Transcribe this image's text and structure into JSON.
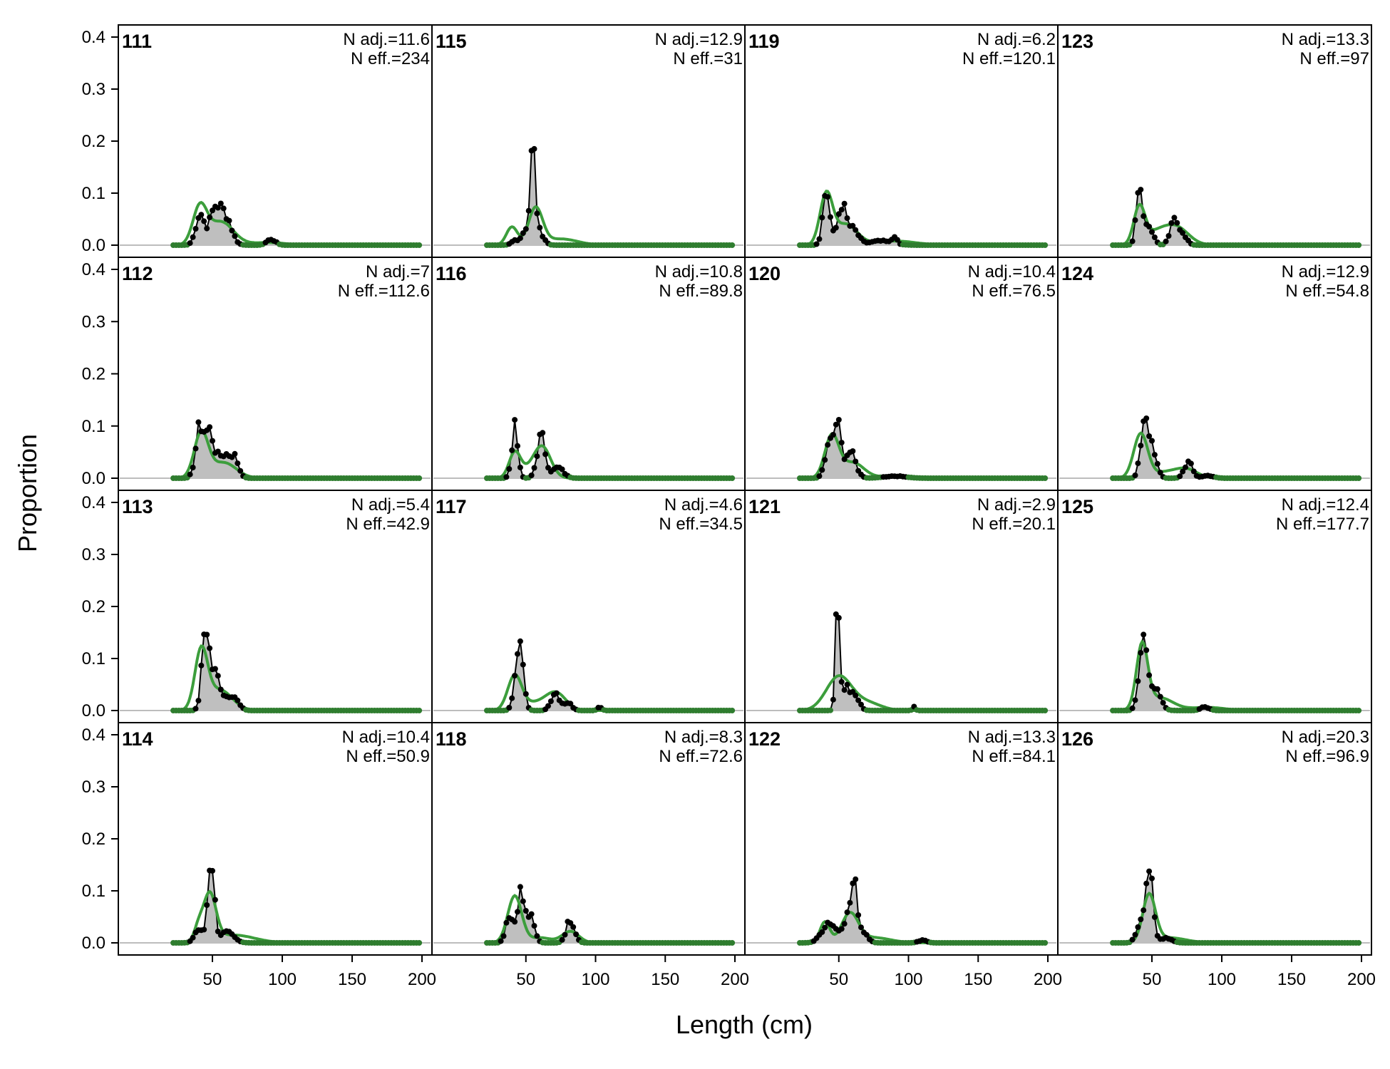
{
  "chart_data": {
    "type": "area",
    "xlabel": "Length (cm)",
    "ylabel": "Proportion",
    "xlim": [
      0,
      200
    ],
    "ylim": [
      0,
      0.4
    ],
    "x_ticks": [
      "50",
      "100",
      "150",
      "200"
    ],
    "y_ticks": [
      "0.0",
      "0.1",
      "0.2",
      "0.3",
      "0.4"
    ],
    "grid": false,
    "colors": {
      "observed_fill": "#bfbfbf",
      "observed_line": "#000000",
      "expected": "#3c9e3c",
      "zero_line": "#bdbdbd"
    },
    "panels": [
      {
        "title": "111",
        "n_adj": "N adj.=11.6",
        "n_eff": "N eff.=234",
        "peaks": [
          {
            "mu": 41,
            "sd": 3,
            "h": 0.06
          },
          {
            "mu": 52,
            "sd": 4,
            "h": 0.07
          },
          {
            "mu": 60,
            "sd": 4,
            "h": 0.05
          },
          {
            "mu": 92,
            "sd": 3,
            "h": 0.012
          }
        ],
        "fit": [
          {
            "mu": 41,
            "sd": 5,
            "h": 0.07
          },
          {
            "mu": 56,
            "sd": 9,
            "h": 0.045
          },
          {
            "mu": 90,
            "sd": 12,
            "h": 0.005
          }
        ]
      },
      {
        "title": "112",
        "n_adj": "N adj.=7",
        "n_eff": "N eff.=112.6",
        "peaks": [
          {
            "mu": 41,
            "sd": 3,
            "h": 0.095
          },
          {
            "mu": 48,
            "sd": 3,
            "h": 0.08
          },
          {
            "mu": 58,
            "sd": 5,
            "h": 0.045
          },
          {
            "mu": 66,
            "sd": 3,
            "h": 0.03
          }
        ],
        "fit": [
          {
            "mu": 42,
            "sd": 5,
            "h": 0.085
          },
          {
            "mu": 58,
            "sd": 9,
            "h": 0.03
          }
        ]
      },
      {
        "title": "113",
        "n_adj": "N adj.=5.4",
        "n_eff": "N eff.=42.9",
        "peaks": [
          {
            "mu": 45,
            "sd": 2.5,
            "h": 0.15
          },
          {
            "mu": 52,
            "sd": 4,
            "h": 0.07
          },
          {
            "mu": 64,
            "sd": 4,
            "h": 0.03
          }
        ],
        "fit": [
          {
            "mu": 42,
            "sd": 4.5,
            "h": 0.11
          },
          {
            "mu": 55,
            "sd": 9,
            "h": 0.04
          }
        ]
      },
      {
        "title": "114",
        "n_adj": "N adj.=10.4",
        "n_eff": "N eff.=50.9",
        "peaks": [
          {
            "mu": 49,
            "sd": 2.3,
            "h": 0.165
          },
          {
            "mu": 40,
            "sd": 3,
            "h": 0.025
          },
          {
            "mu": 60,
            "sd": 5,
            "h": 0.02
          }
        ],
        "fit": [
          {
            "mu": 48,
            "sd": 4.5,
            "h": 0.09
          },
          {
            "mu": 40,
            "sd": 3,
            "h": 0.025
          },
          {
            "mu": 65,
            "sd": 15,
            "h": 0.015
          }
        ]
      },
      {
        "title": "115",
        "n_adj": "N adj.=12.9",
        "n_eff": "N eff.=31",
        "peaks": [
          {
            "mu": 55,
            "sd": 1.8,
            "h": 0.185
          },
          {
            "mu": 50,
            "sd": 2.5,
            "h": 0.03
          },
          {
            "mu": 60,
            "sd": 3,
            "h": 0.025
          },
          {
            "mu": 43,
            "sd": 3,
            "h": 0.01
          }
        ],
        "fit": [
          {
            "mu": 57,
            "sd": 5,
            "h": 0.07
          },
          {
            "mu": 40,
            "sd": 4,
            "h": 0.035
          },
          {
            "mu": 75,
            "sd": 12,
            "h": 0.012
          }
        ]
      },
      {
        "title": "116",
        "n_adj": "N adj.=10.8",
        "n_eff": "N eff.=89.8",
        "peaks": [
          {
            "mu": 42,
            "sd": 2.2,
            "h": 0.095
          },
          {
            "mu": 61,
            "sd": 3,
            "h": 0.08
          },
          {
            "mu": 73,
            "sd": 4,
            "h": 0.02
          }
        ],
        "fit": [
          {
            "mu": 42,
            "sd": 4,
            "h": 0.045
          },
          {
            "mu": 62,
            "sd": 6,
            "h": 0.055
          },
          {
            "mu": 52,
            "sd": 8,
            "h": 0.015
          }
        ]
      },
      {
        "title": "117",
        "n_adj": "N adj.=4.6",
        "n_eff": "N eff.=34.5",
        "peaks": [
          {
            "mu": 45,
            "sd": 2.8,
            "h": 0.14
          },
          {
            "mu": 71,
            "sd": 3,
            "h": 0.035
          },
          {
            "mu": 80,
            "sd": 3,
            "h": 0.015
          },
          {
            "mu": 103,
            "sd": 1.5,
            "h": 0.008
          }
        ],
        "fit": [
          {
            "mu": 42,
            "sd": 5,
            "h": 0.065
          },
          {
            "mu": 72,
            "sd": 7,
            "h": 0.03
          },
          {
            "mu": 58,
            "sd": 10,
            "h": 0.015
          }
        ]
      },
      {
        "title": "118",
        "n_adj": "N adj.=8.3",
        "n_eff": "N eff.=72.6",
        "peaks": [
          {
            "mu": 46,
            "sd": 2.5,
            "h": 0.095
          },
          {
            "mu": 38,
            "sd": 2.5,
            "h": 0.055
          },
          {
            "mu": 53,
            "sd": 3,
            "h": 0.05
          },
          {
            "mu": 82,
            "sd": 3,
            "h": 0.045
          }
        ],
        "fit": [
          {
            "mu": 42,
            "sd": 5,
            "h": 0.09
          },
          {
            "mu": 82,
            "sd": 6,
            "h": 0.022
          },
          {
            "mu": 60,
            "sd": 8,
            "h": 0.01
          }
        ]
      },
      {
        "title": "119",
        "n_adj": "N adj.=6.2",
        "n_eff": "N eff.=120.1",
        "peaks": [
          {
            "mu": 41,
            "sd": 2.5,
            "h": 0.105
          },
          {
            "mu": 52,
            "sd": 3,
            "h": 0.075
          },
          {
            "mu": 60,
            "sd": 4,
            "h": 0.03
          },
          {
            "mu": 90,
            "sd": 1.5,
            "h": 0.015
          },
          {
            "mu": 80,
            "sd": 8,
            "h": 0.008
          }
        ],
        "fit": [
          {
            "mu": 41,
            "sd": 4.5,
            "h": 0.095
          },
          {
            "mu": 55,
            "sd": 8,
            "h": 0.04
          },
          {
            "mu": 90,
            "sd": 15,
            "h": 0.008
          }
        ]
      },
      {
        "title": "120",
        "n_adj": "N adj.=10.4",
        "n_eff": "N eff.=76.5",
        "peaks": [
          {
            "mu": 49,
            "sd": 2.5,
            "h": 0.095
          },
          {
            "mu": 43,
            "sd": 3,
            "h": 0.06
          },
          {
            "mu": 58,
            "sd": 4,
            "h": 0.05
          },
          {
            "mu": 90,
            "sd": 8,
            "h": 0.004
          }
        ],
        "fit": [
          {
            "mu": 45,
            "sd": 5,
            "h": 0.08
          },
          {
            "mu": 60,
            "sd": 8,
            "h": 0.03
          },
          {
            "mu": 90,
            "sd": 10,
            "h": 0.004
          }
        ]
      },
      {
        "title": "121",
        "n_adj": "N adj.=2.9",
        "n_eff": "N eff.=20.1",
        "peaks": [
          {
            "mu": 49,
            "sd": 1.4,
            "h": 0.245
          },
          {
            "mu": 55,
            "sd": 3,
            "h": 0.045
          },
          {
            "mu": 62,
            "sd": 3,
            "h": 0.025
          },
          {
            "mu": 104,
            "sd": 1,
            "h": 0.008
          }
        ],
        "fit": [
          {
            "mu": 50,
            "sd": 9,
            "h": 0.065
          },
          {
            "mu": 70,
            "sd": 10,
            "h": 0.015
          }
        ]
      },
      {
        "title": "122",
        "n_adj": "N adj.=13.3",
        "n_eff": "N eff.=84.1",
        "peaks": [
          {
            "mu": 61,
            "sd": 2.5,
            "h": 0.11
          },
          {
            "mu": 43,
            "sd": 5,
            "h": 0.04
          },
          {
            "mu": 55,
            "sd": 3,
            "h": 0.04
          },
          {
            "mu": 68,
            "sd": 3,
            "h": 0.02
          },
          {
            "mu": 110,
            "sd": 3,
            "h": 0.005
          }
        ],
        "fit": [
          {
            "mu": 40,
            "sd": 3.5,
            "h": 0.04
          },
          {
            "mu": 58,
            "sd": 6,
            "h": 0.055
          },
          {
            "mu": 75,
            "sd": 12,
            "h": 0.01
          }
        ]
      },
      {
        "title": "123",
        "n_adj": "N adj.=13.3",
        "n_eff": "N eff.=97",
        "peaks": [
          {
            "mu": 41,
            "sd": 2.2,
            "h": 0.12
          },
          {
            "mu": 48,
            "sd": 3,
            "h": 0.035
          },
          {
            "mu": 66,
            "sd": 3,
            "h": 0.045
          },
          {
            "mu": 72,
            "sd": 3,
            "h": 0.02
          }
        ],
        "fit": [
          {
            "mu": 41,
            "sd": 4,
            "h": 0.07
          },
          {
            "mu": 67,
            "sd": 9,
            "h": 0.035
          },
          {
            "mu": 52,
            "sd": 8,
            "h": 0.02
          }
        ]
      },
      {
        "title": "124",
        "n_adj": "N adj.=12.9",
        "n_eff": "N eff.=54.8",
        "peaks": [
          {
            "mu": 45,
            "sd": 2.8,
            "h": 0.12
          },
          {
            "mu": 51,
            "sd": 3,
            "h": 0.04
          },
          {
            "mu": 76,
            "sd": 3,
            "h": 0.03
          },
          {
            "mu": 90,
            "sd": 4,
            "h": 0.005
          }
        ],
        "fit": [
          {
            "mu": 42,
            "sd": 5,
            "h": 0.085
          },
          {
            "mu": 74,
            "sd": 8,
            "h": 0.018
          },
          {
            "mu": 58,
            "sd": 8,
            "h": 0.01
          }
        ]
      },
      {
        "title": "125",
        "n_adj": "N adj.=12.4",
        "n_eff": "N eff.=177.7",
        "peaks": [
          {
            "mu": 44,
            "sd": 3,
            "h": 0.135
          },
          {
            "mu": 52,
            "sd": 4,
            "h": 0.04
          },
          {
            "mu": 88,
            "sd": 3,
            "h": 0.007
          }
        ],
        "fit": [
          {
            "mu": 43,
            "sd": 4,
            "h": 0.12
          },
          {
            "mu": 55,
            "sd": 10,
            "h": 0.025
          },
          {
            "mu": 90,
            "sd": 12,
            "h": 0.006
          }
        ]
      },
      {
        "title": "126",
        "n_adj": "N adj.=20.3",
        "n_eff": "N eff.=96.9",
        "peaks": [
          {
            "mu": 48,
            "sd": 2.6,
            "h": 0.14
          },
          {
            "mu": 42,
            "sd": 3,
            "h": 0.04
          },
          {
            "mu": 60,
            "sd": 4,
            "h": 0.01
          }
        ],
        "fit": [
          {
            "mu": 48,
            "sd": 4.5,
            "h": 0.09
          },
          {
            "mu": 62,
            "sd": 12,
            "h": 0.01
          }
        ]
      }
    ]
  }
}
